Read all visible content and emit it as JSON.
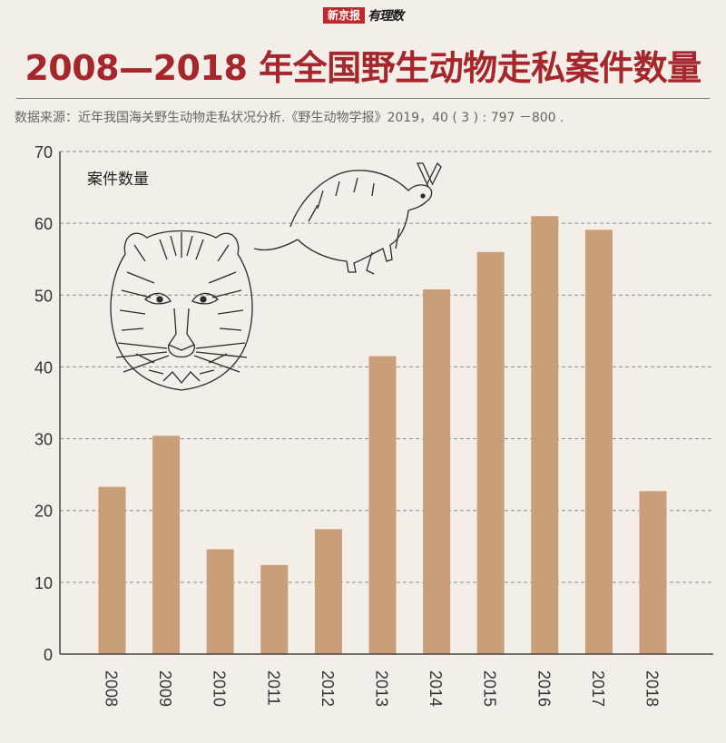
{
  "brand": {
    "name": "新京报",
    "sub": "有理数"
  },
  "title": "2008—2018 年全国野生动物走私案件数量",
  "source": "数据来源：近年我国海关野生动物走私状况分析.《野生动物学报》2019，40 ( 3 ) : 797 －800 .",
  "colors": {
    "bar": "#c99f7a",
    "title": "#a5262b",
    "brand": "#c0282d",
    "background": "#f3eee8"
  },
  "illustrations": [
    "tiger-head",
    "kangaroo"
  ],
  "chart_data": {
    "type": "bar",
    "ylabel": "案件数量",
    "xlabel": "",
    "categories": [
      "2008",
      "2009",
      "2010",
      "2011",
      "2012",
      "2013",
      "2014",
      "2015",
      "2016",
      "2017",
      "2018"
    ],
    "values": [
      23.3,
      30.4,
      14.6,
      12.4,
      17.4,
      41.5,
      50.8,
      56,
      61,
      59.1,
      22.7
    ],
    "ylim": [
      0,
      70
    ],
    "yticks": [
      0,
      10,
      20,
      30,
      40,
      50,
      60,
      70
    ],
    "grid": true
  }
}
